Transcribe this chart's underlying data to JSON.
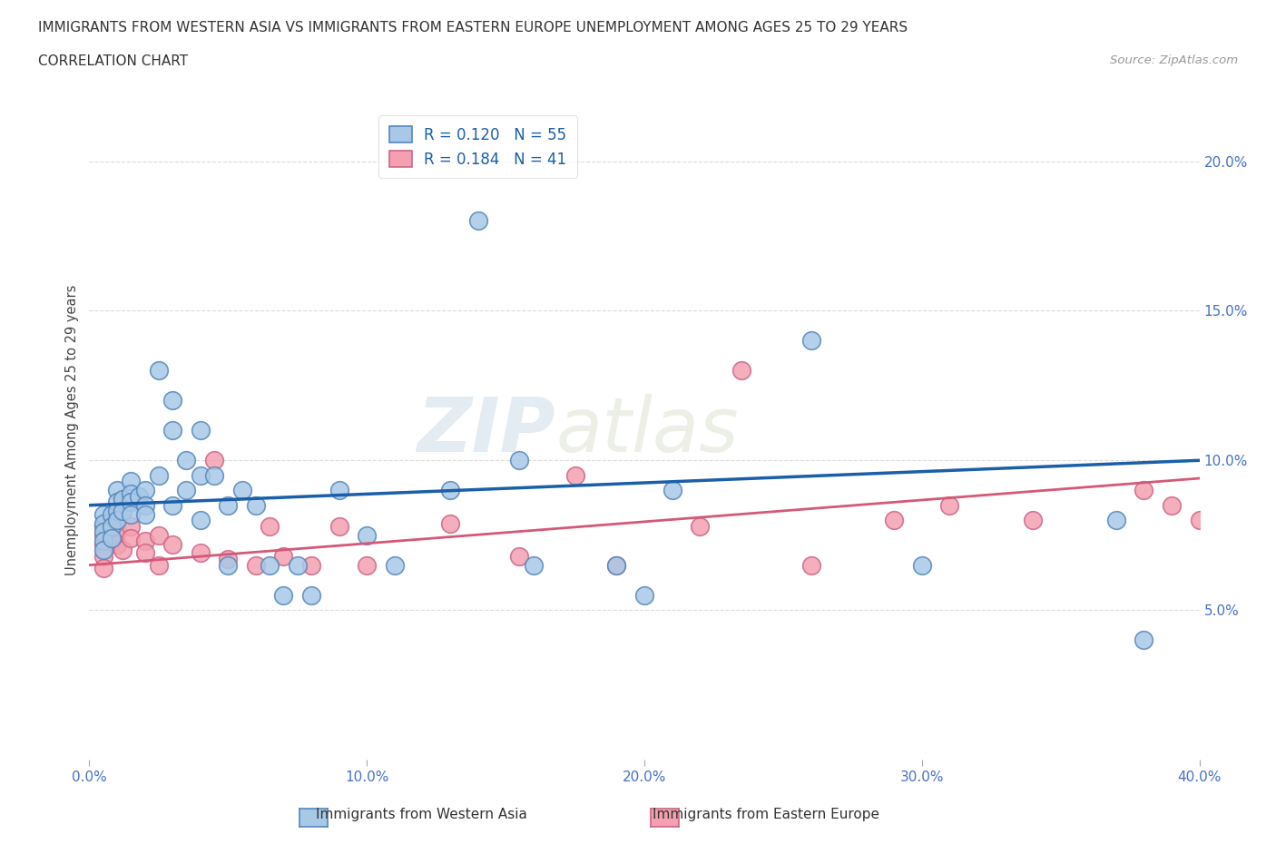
{
  "title_line1": "IMMIGRANTS FROM WESTERN ASIA VS IMMIGRANTS FROM EASTERN EUROPE UNEMPLOYMENT AMONG AGES 25 TO 29 YEARS",
  "title_line2": "CORRELATION CHART",
  "source_text": "Source: ZipAtlas.com",
  "ylabel": "Unemployment Among Ages 25 to 29 years",
  "xlim": [
    0.0,
    0.4
  ],
  "ylim": [
    0.0,
    0.22
  ],
  "xticks": [
    0.0,
    0.1,
    0.2,
    0.3,
    0.4
  ],
  "yticks": [
    0.05,
    0.1,
    0.15,
    0.2
  ],
  "ytick_labels": [
    "5.0%",
    "10.0%",
    "15.0%",
    "20.0%"
  ],
  "xtick_labels": [
    "0.0%",
    "10.0%",
    "20.0%",
    "30.0%",
    "40.0%"
  ],
  "watermark_zip": "ZIP",
  "watermark_atlas": "atlas",
  "blue_color": "#a8c8e8",
  "blue_edge_color": "#5588bb",
  "pink_color": "#f4a0b0",
  "pink_edge_color": "#cc6688",
  "blue_line_color": "#1a5fa8",
  "pink_line_color": "#d45878",
  "blue_label": "Immigrants from Western Asia",
  "pink_label": "Immigrants from Eastern Europe",
  "blue_R": 0.12,
  "blue_N": 55,
  "pink_R": 0.184,
  "pink_N": 41,
  "background_color": "#ffffff",
  "grid_color": "#cccccc",
  "axis_color": "#4472c4",
  "legend_text_color": "#1a5fa8",
  "blue_x": [
    0.005,
    0.005,
    0.005,
    0.005,
    0.005,
    0.008,
    0.008,
    0.008,
    0.01,
    0.01,
    0.01,
    0.01,
    0.012,
    0.012,
    0.015,
    0.015,
    0.015,
    0.015,
    0.018,
    0.02,
    0.02,
    0.02,
    0.025,
    0.025,
    0.03,
    0.03,
    0.03,
    0.035,
    0.035,
    0.04,
    0.04,
    0.04,
    0.045,
    0.05,
    0.05,
    0.055,
    0.06,
    0.065,
    0.07,
    0.075,
    0.08,
    0.09,
    0.1,
    0.11,
    0.13,
    0.14,
    0.155,
    0.16,
    0.19,
    0.2,
    0.21,
    0.26,
    0.3,
    0.37,
    0.38
  ],
  "blue_y": [
    0.082,
    0.079,
    0.076,
    0.073,
    0.07,
    0.082,
    0.078,
    0.074,
    0.09,
    0.086,
    0.083,
    0.08,
    0.087,
    0.083,
    0.093,
    0.089,
    0.086,
    0.082,
    0.088,
    0.09,
    0.085,
    0.082,
    0.13,
    0.095,
    0.12,
    0.11,
    0.085,
    0.1,
    0.09,
    0.11,
    0.095,
    0.08,
    0.095,
    0.085,
    0.065,
    0.09,
    0.085,
    0.065,
    0.055,
    0.065,
    0.055,
    0.09,
    0.075,
    0.065,
    0.09,
    0.18,
    0.1,
    0.065,
    0.065,
    0.055,
    0.09,
    0.14,
    0.065,
    0.08,
    0.04
  ],
  "pink_x": [
    0.005,
    0.005,
    0.005,
    0.005,
    0.005,
    0.006,
    0.008,
    0.008,
    0.008,
    0.01,
    0.01,
    0.012,
    0.015,
    0.015,
    0.02,
    0.02,
    0.025,
    0.025,
    0.03,
    0.04,
    0.045,
    0.05,
    0.06,
    0.065,
    0.07,
    0.08,
    0.09,
    0.1,
    0.13,
    0.155,
    0.175,
    0.19,
    0.22,
    0.235,
    0.26,
    0.29,
    0.31,
    0.34,
    0.38,
    0.39,
    0.4
  ],
  "pink_y": [
    0.078,
    0.075,
    0.072,
    0.068,
    0.064,
    0.074,
    0.08,
    0.077,
    0.073,
    0.076,
    0.072,
    0.07,
    0.078,
    0.074,
    0.073,
    0.069,
    0.075,
    0.065,
    0.072,
    0.069,
    0.1,
    0.067,
    0.065,
    0.078,
    0.068,
    0.065,
    0.078,
    0.065,
    0.079,
    0.068,
    0.095,
    0.065,
    0.078,
    0.13,
    0.065,
    0.08,
    0.085,
    0.08,
    0.09,
    0.085,
    0.08
  ],
  "blue_line_x0": 0.0,
  "blue_line_y0": 0.085,
  "blue_line_x1": 0.4,
  "blue_line_y1": 0.1,
  "pink_line_x0": 0.0,
  "pink_line_y0": 0.065,
  "pink_line_x1": 0.4,
  "pink_line_y1": 0.094
}
